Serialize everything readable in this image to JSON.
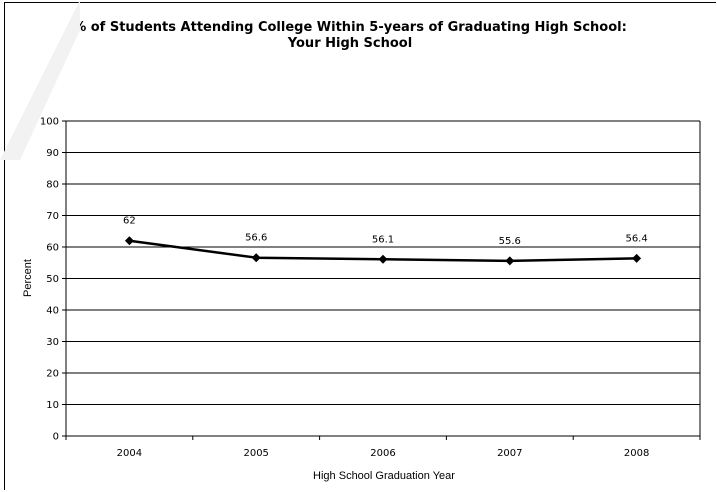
{
  "chart_data": {
    "type": "line",
    "title_lines": [
      "% of Students Attending College Within 5-years of Graduating High School:",
      "Your High School"
    ],
    "xlabel": "High School Graduation Year",
    "ylabel": "Percent",
    "categories": [
      "2004",
      "2005",
      "2006",
      "2007",
      "2008"
    ],
    "values": [
      62,
      56.6,
      56.1,
      55.6,
      56.4
    ],
    "data_labels": [
      "62",
      "56.6",
      "56.1",
      "55.6",
      "56.4"
    ],
    "ylim": [
      0,
      100
    ],
    "yticks": [
      0,
      10,
      20,
      30,
      40,
      50,
      60,
      70,
      80,
      90,
      100
    ],
    "grid": true,
    "line_color": "#000000",
    "marker": "diamond"
  }
}
